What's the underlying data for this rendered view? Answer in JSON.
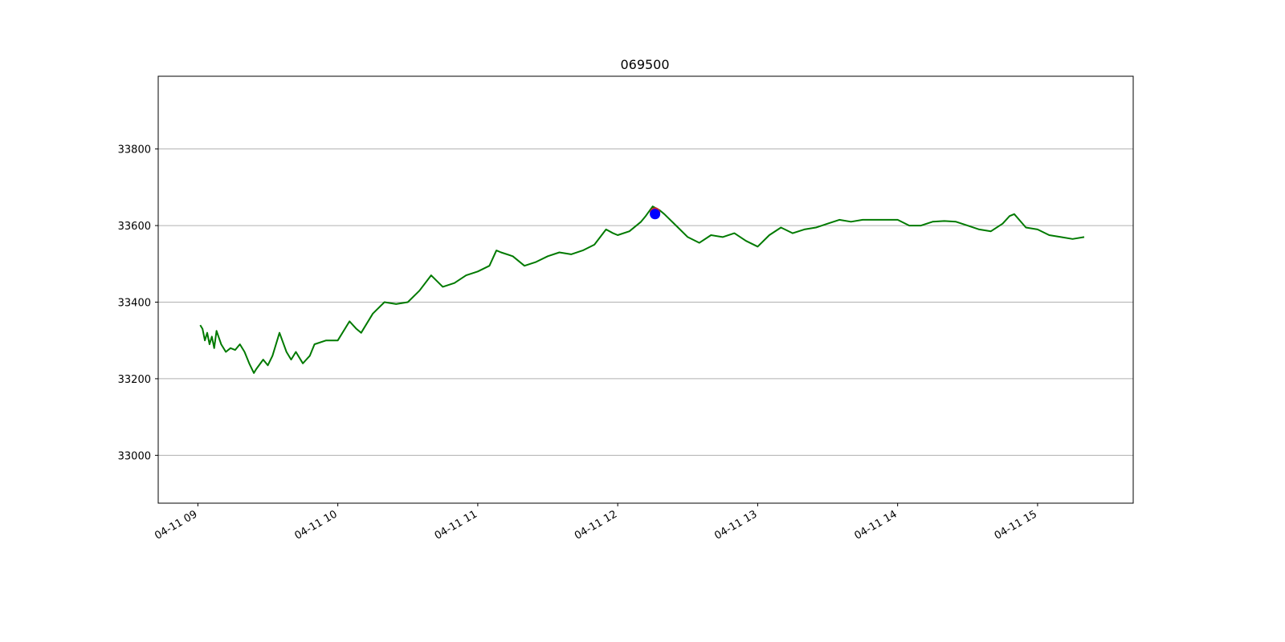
{
  "chart_data": {
    "type": "line",
    "title": "069500",
    "xlabel": "",
    "ylabel": "",
    "x_tick_labels": [
      "04-11 09",
      "04-11 10",
      "04-11 11",
      "04-11 12",
      "04-11 13",
      "04-11 14",
      "04-11 15"
    ],
    "x_tick_times": [
      "09:00",
      "10:00",
      "11:00",
      "12:00",
      "13:00",
      "14:00",
      "15:00"
    ],
    "xlim": [
      "08:43",
      "15:41"
    ],
    "y_ticks": [
      33000,
      33200,
      33400,
      33600,
      33800
    ],
    "y_tick_labels": [
      "33000",
      "33200",
      "33400",
      "33600",
      "33800"
    ],
    "ylim": [
      32875,
      33990
    ],
    "grid": "horizontal",
    "series": [
      {
        "color": "#007a00",
        "x": [
          "09:01",
          "09:02",
          "09:03",
          "09:04",
          "09:05",
          "09:06",
          "09:07",
          "09:08",
          "09:10",
          "09:12",
          "09:14",
          "09:16",
          "09:18",
          "09:20",
          "09:22",
          "09:24",
          "09:25",
          "09:28",
          "09:30",
          "09:32",
          "09:35",
          "09:38",
          "09:40",
          "09:42",
          "09:45",
          "09:48",
          "09:50",
          "09:55",
          "10:00",
          "10:05",
          "10:08",
          "10:10",
          "10:15",
          "10:20",
          "10:25",
          "10:30",
          "10:35",
          "10:40",
          "10:45",
          "10:50",
          "10:55",
          "11:00",
          "11:05",
          "11:08",
          "11:10",
          "11:15",
          "11:20",
          "11:25",
          "11:30",
          "11:35",
          "11:40",
          "11:45",
          "11:50",
          "11:55",
          "11:58",
          "12:00",
          "12:05",
          "12:10",
          "12:12",
          "12:15",
          "12:18",
          "12:20",
          "12:25",
          "12:30",
          "12:35",
          "12:40",
          "12:45",
          "12:50",
          "12:55",
          "13:00",
          "13:05",
          "13:10",
          "13:15",
          "13:20",
          "13:25",
          "13:30",
          "13:35",
          "13:40",
          "13:45",
          "13:50",
          "13:55",
          "14:00",
          "14:05",
          "14:10",
          "14:15",
          "14:20",
          "14:25",
          "14:30",
          "14:35",
          "14:40",
          "14:45",
          "14:48",
          "14:50",
          "14:55",
          "15:00",
          "15:05",
          "15:10",
          "15:15",
          "15:20"
        ],
        "y": [
          33340,
          33330,
          33300,
          33320,
          33290,
          33310,
          33280,
          33325,
          33290,
          33270,
          33280,
          33275,
          33290,
          33270,
          33240,
          33215,
          33225,
          33250,
          33235,
          33260,
          33320,
          33270,
          33250,
          33270,
          33240,
          33260,
          33290,
          33300,
          33300,
          33350,
          33330,
          33320,
          33370,
          33400,
          33395,
          33400,
          33430,
          33470,
          33440,
          33450,
          33470,
          33480,
          33495,
          33535,
          33530,
          33520,
          33495,
          33505,
          33520,
          33530,
          33525,
          33535,
          33550,
          33590,
          33580,
          33575,
          33585,
          33610,
          33625,
          33650,
          33640,
          33630,
          33600,
          33570,
          33555,
          33575,
          33570,
          33580,
          33560,
          33545,
          33575,
          33595,
          33580,
          33590,
          33595,
          33605,
          33615,
          33610,
          33615,
          33615,
          33615,
          33615,
          33600,
          33600,
          33610,
          33612,
          33610,
          33600,
          33590,
          33585,
          33605,
          33625,
          33630,
          33595,
          33590,
          33575,
          33570,
          33565,
          33570
        ]
      }
    ],
    "markers": [
      {
        "time": "12:16",
        "value": 33634,
        "color": "#d62728"
      },
      {
        "time": "12:16",
        "value": 33630,
        "color": "#0000ff"
      }
    ]
  }
}
